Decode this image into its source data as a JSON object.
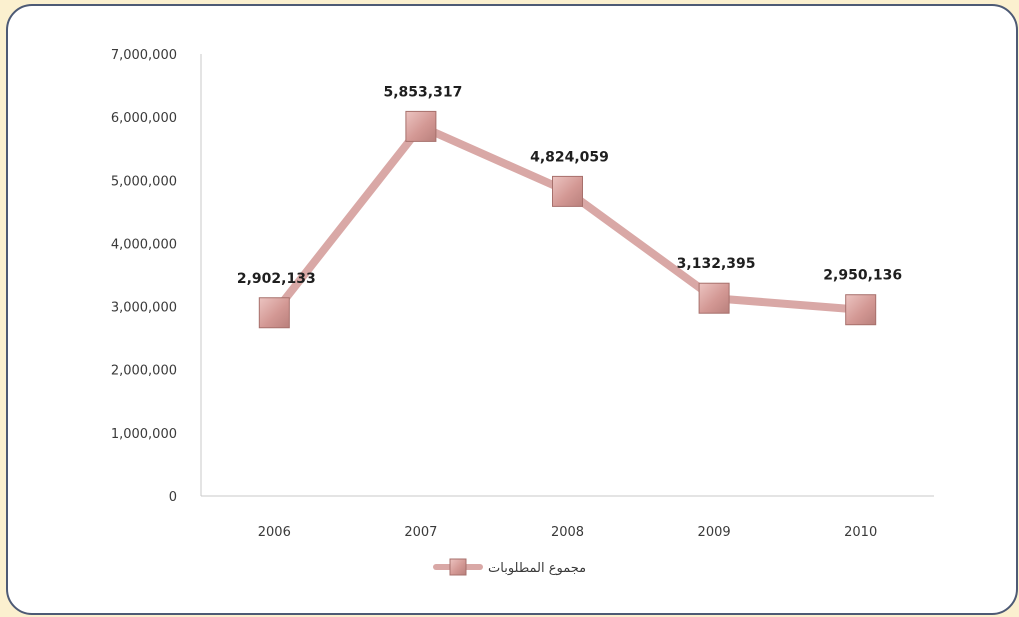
{
  "chart_data": {
    "type": "line",
    "title": "",
    "xlabel": "",
    "ylabel": "",
    "categories": [
      "2006",
      "2007",
      "2008",
      "2009",
      "2010"
    ],
    "ylim": [
      0,
      7000000
    ],
    "yticks": [
      "0",
      "1,000,000",
      "2,000,000",
      "3,000,000",
      "4,000,000",
      "5,000,000",
      "6,000,000",
      "7,000,000"
    ],
    "series": [
      {
        "name": "مجموع المطلوبات",
        "values": [
          2902133,
          5853317,
          4824059,
          3132395,
          2950136
        ],
        "labels": [
          "2,902,133",
          "5,853,317",
          "4,824,059",
          "3,132,395",
          "2,950,136"
        ],
        "color": "#d9a8a6",
        "marker": "square"
      }
    ],
    "grid": false,
    "legend": "bottom-center"
  },
  "colors": {
    "page_background": "#fbf0cf",
    "frame_border": "#4d5a75",
    "line": "#d9a8a6",
    "marker_fill": "#d8a09c",
    "axis": "#c8c8c8"
  }
}
